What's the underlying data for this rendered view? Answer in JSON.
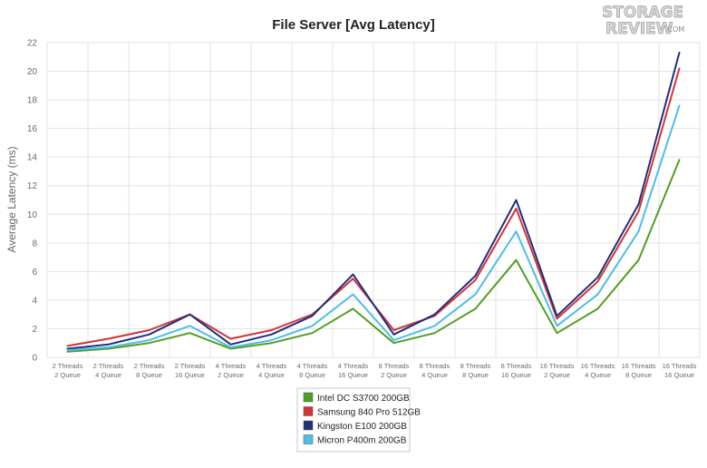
{
  "logo": {
    "line1": "STORAGE",
    "line2": "REVIEW",
    "suffix": ".COM"
  },
  "chart_data": {
    "type": "line",
    "title": "File Server [Avg Latency]",
    "xlabel": "",
    "ylabel": "Average Latency (ms)",
    "ylim": [
      0,
      22
    ],
    "yticks": [
      0,
      2,
      4,
      6,
      8,
      10,
      12,
      14,
      16,
      18,
      20,
      22
    ],
    "grid": true,
    "legend_position": "bottom-center",
    "categories": [
      [
        "2 Threads",
        "2 Queue"
      ],
      [
        "2 Threads",
        "4 Queue"
      ],
      [
        "2 Threads",
        "8 Queue"
      ],
      [
        "2 Threads",
        "16 Queue"
      ],
      [
        "4 Threads",
        "2 Queue"
      ],
      [
        "4 Threads",
        "4 Queue"
      ],
      [
        "4 Threads",
        "8 Queue"
      ],
      [
        "4 Threads",
        "16 Queue"
      ],
      [
        "8 Threads",
        "2 Queue"
      ],
      [
        "8 Threads",
        "4 Queue"
      ],
      [
        "8 Threads",
        "8 Queue"
      ],
      [
        "8 Threads",
        "16 Queue"
      ],
      [
        "16 Threads",
        "2 Queue"
      ],
      [
        "16 Threads",
        "4 Queue"
      ],
      [
        "16 Threads",
        "8 Queue"
      ],
      [
        "16 Threads",
        "16 Queue"
      ]
    ],
    "series": [
      {
        "name": "Intel DC S3700 200GB",
        "color": "#4ea021",
        "values": [
          0.4,
          0.6,
          1.0,
          1.7,
          0.6,
          1.0,
          1.7,
          3.4,
          1.0,
          1.7,
          3.4,
          6.8,
          1.7,
          3.4,
          6.8,
          13.8
        ]
      },
      {
        "name": "Samsung 840 Pro 512GB",
        "color": "#d13438",
        "values": [
          0.8,
          1.3,
          1.9,
          3.0,
          1.3,
          1.9,
          3.0,
          5.5,
          1.9,
          2.9,
          5.4,
          10.4,
          2.7,
          5.3,
          10.2,
          20.2
        ]
      },
      {
        "name": "Kingston E100 200GB",
        "color": "#1f2f7e",
        "values": [
          0.6,
          0.9,
          1.6,
          3.0,
          0.9,
          1.6,
          2.9,
          5.8,
          1.6,
          3.0,
          5.7,
          11.0,
          2.9,
          5.6,
          10.7,
          21.3
        ]
      },
      {
        "name": "Micron P400m 200GB",
        "color": "#4fbde9",
        "values": [
          0.5,
          0.7,
          1.2,
          2.2,
          0.7,
          1.2,
          2.2,
          4.4,
          1.2,
          2.2,
          4.4,
          8.8,
          2.2,
          4.4,
          8.8,
          17.6
        ]
      }
    ]
  }
}
